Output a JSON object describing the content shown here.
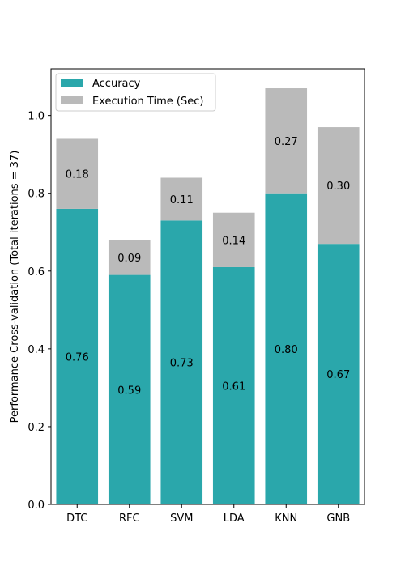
{
  "chart_data": {
    "type": "bar",
    "stacked": true,
    "categories": [
      "DTC",
      "RFC",
      "SVM",
      "LDA",
      "KNN",
      "GNB"
    ],
    "series": [
      {
        "name": "Accuracy",
        "values": [
          0.76,
          0.59,
          0.73,
          0.61,
          0.8,
          0.67
        ],
        "color": "#2aa7ab"
      },
      {
        "name": "Execution Time (Sec)",
        "values": [
          0.18,
          0.09,
          0.11,
          0.14,
          0.27,
          0.3
        ],
        "color": "#bababa"
      }
    ],
    "data_labels": {
      "accuracy": [
        "0.76",
        "0.59",
        "0.73",
        "0.61",
        "0.80",
        "0.67"
      ],
      "time": [
        "0.18",
        "0.09",
        "0.11",
        "0.14",
        "0.27",
        "0.30"
      ]
    },
    "ylabel": "Performance Cross-validation (Total iterations = 37)",
    "xlabel": "",
    "title": "",
    "ylim": [
      0,
      1.12
    ],
    "yticks": [
      0.0,
      0.2,
      0.4,
      0.6,
      0.8,
      1.0
    ],
    "ytick_labels": [
      "0.0",
      "0.2",
      "0.4",
      "0.6",
      "0.8",
      "1.0"
    ],
    "grid": false,
    "legend_position": "top-left"
  }
}
